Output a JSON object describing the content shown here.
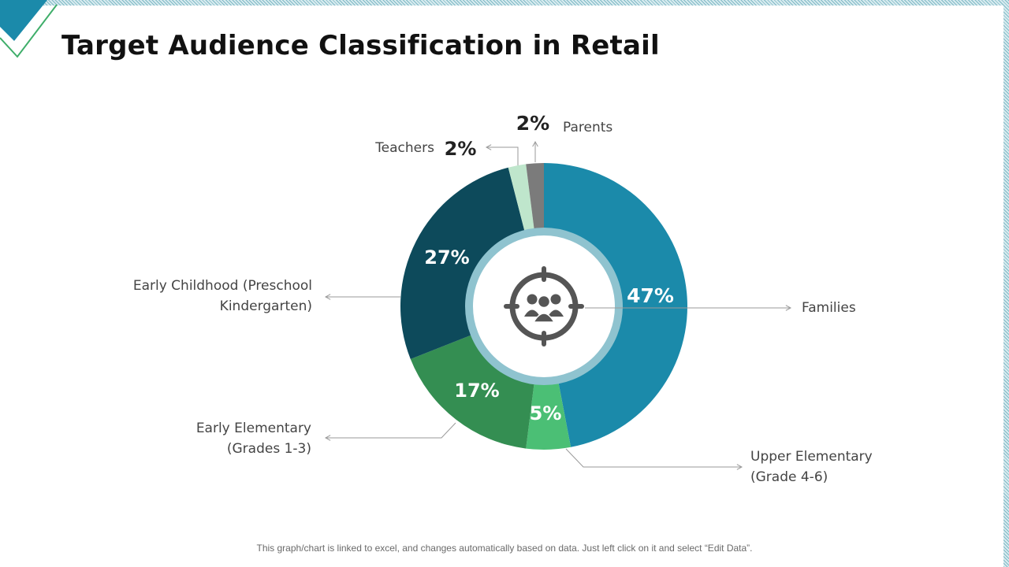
{
  "title": "Target Audience Classification in Retail",
  "footnote": "This graph/chart is linked to excel, and changes automatically based on data. Just left click on it and select “Edit Data”.",
  "center_icon": "target-group-icon",
  "chart_data": {
    "type": "pie",
    "style": "donut",
    "title": "Target Audience Classification in Retail",
    "slices": [
      {
        "label_lines": [
          "Families"
        ],
        "value": 47,
        "value_label": "47%",
        "color": "#1b8aaa"
      },
      {
        "label_lines": [
          "Upper Elementary",
          "(Grade 4-6)"
        ],
        "value": 5,
        "value_label": "5%",
        "color": "#4bbf75"
      },
      {
        "label_lines": [
          "Early Elementary",
          "(Grades 1-3)"
        ],
        "value": 17,
        "value_label": "17%",
        "color": "#348e52"
      },
      {
        "label_lines": [
          "Early Childhood (Preschool",
          "Kindergarten)"
        ],
        "value": 27,
        "value_label": "27%",
        "color": "#0d4a5b"
      },
      {
        "label_lines": [
          "Teachers"
        ],
        "value": 2,
        "value_label": "2%",
        "color": "#bfe6cc"
      },
      {
        "label_lines": [
          "Parents"
        ],
        "value": 2,
        "value_label": "2%",
        "color": "#7b7b7b"
      }
    ],
    "inner_ring_color": "#8fc3cf",
    "label_color": "#444444",
    "leader_color": "#9a9a9a"
  }
}
